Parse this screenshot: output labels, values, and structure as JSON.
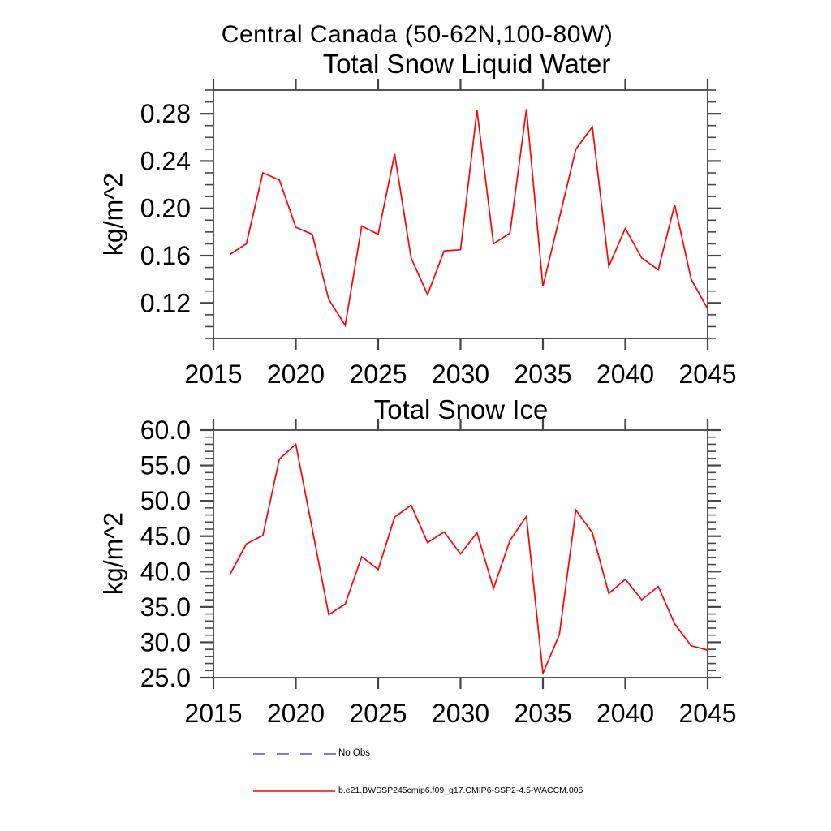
{
  "figure": {
    "title": "Central Canada (50-62N,100-80W)",
    "background_color": "#ffffff",
    "axis_color": "#555555",
    "tick_color": "#444444",
    "text_color": "#000000"
  },
  "legend": {
    "position": "bottom-left",
    "entries": [
      {
        "label": "No Obs",
        "line_style": "dashed",
        "color": "#6a6ad9"
      },
      {
        "label": "b.e21.BWSSP245cmip6.f09_g17.CMIP6-SSP2-4.5-WACCM.005",
        "line_style": "solid",
        "color": "#ff0000"
      }
    ]
  },
  "chart_data": [
    {
      "type": "line",
      "title": "Total Snow Liquid Water",
      "xlabel": "",
      "ylabel": "kg/m^2",
      "xlim": [
        2015,
        2045
      ],
      "ylim": [
        0.09,
        0.3
      ],
      "grid": false,
      "x_ticks": [
        2015,
        2020,
        2025,
        2030,
        2035,
        2040,
        2045
      ],
      "x_tick_labels": [
        "2015",
        "2020",
        "2025",
        "2030",
        "2035",
        "2040",
        "2045"
      ],
      "y_major_ticks": [
        0.12,
        0.16,
        0.2,
        0.24,
        0.28
      ],
      "y_tick_labels": [
        "0.12",
        "0.16",
        "0.20",
        "0.24",
        "0.28"
      ],
      "y_minor_step": 0.01,
      "x": [
        2016,
        2017,
        2018,
        2019,
        2020,
        2021,
        2022,
        2023,
        2024,
        2025,
        2026,
        2027,
        2028,
        2029,
        2030,
        2031,
        2032,
        2033,
        2034,
        2035,
        2036,
        2037,
        2038,
        2039,
        2040,
        2041,
        2042,
        2043,
        2044,
        2045
      ],
      "series": [
        {
          "name": "b.e21.BWSSP245cmip6.f09_g17.CMIP6-SSP2-4.5-WACCM.005",
          "color": "#ff0000",
          "values": [
            0.161,
            0.17,
            0.23,
            0.224,
            0.184,
            0.178,
            0.123,
            0.101,
            0.185,
            0.178,
            0.246,
            0.158,
            0.127,
            0.164,
            0.165,
            0.283,
            0.17,
            0.179,
            0.284,
            0.134,
            0.192,
            0.25,
            0.269,
            0.151,
            0.183,
            0.158,
            0.148,
            0.203,
            0.14,
            0.115
          ]
        }
      ]
    },
    {
      "type": "line",
      "title": "Total Snow Ice",
      "xlabel": "",
      "ylabel": "kg/m^2",
      "xlim": [
        2015,
        2045
      ],
      "ylim": [
        25.0,
        60.0
      ],
      "grid": false,
      "x_ticks": [
        2015,
        2020,
        2025,
        2030,
        2035,
        2040,
        2045
      ],
      "x_tick_labels": [
        "2015",
        "2020",
        "2025",
        "2030",
        "2035",
        "2040",
        "2045"
      ],
      "y_major_ticks": [
        25.0,
        30.0,
        35.0,
        40.0,
        45.0,
        50.0,
        55.0,
        60.0
      ],
      "y_tick_labels": [
        "25.0",
        "30.0",
        "35.0",
        "40.0",
        "45.0",
        "50.0",
        "55.0",
        "60.0"
      ],
      "y_minor_step": 1.0,
      "x": [
        2016,
        2017,
        2018,
        2019,
        2020,
        2021,
        2022,
        2023,
        2024,
        2025,
        2026,
        2027,
        2028,
        2029,
        2030,
        2031,
        2032,
        2033,
        2034,
        2035,
        2036,
        2037,
        2038,
        2039,
        2040,
        2041,
        2042,
        2043,
        2044,
        2045
      ],
      "series": [
        {
          "name": "b.e21.BWSSP245cmip6.f09_g17.CMIP6-SSP2-4.5-WACCM.005",
          "color": "#ff0000",
          "values": [
            39.6,
            43.9,
            45.1,
            55.9,
            58.0,
            46.0,
            33.9,
            35.4,
            42.1,
            40.3,
            47.7,
            49.4,
            44.1,
            45.6,
            42.5,
            45.5,
            37.6,
            44.4,
            47.8,
            25.6,
            31.1,
            48.7,
            45.5,
            36.9,
            38.9,
            36.0,
            37.9,
            32.6,
            29.5,
            28.9
          ]
        }
      ]
    }
  ]
}
